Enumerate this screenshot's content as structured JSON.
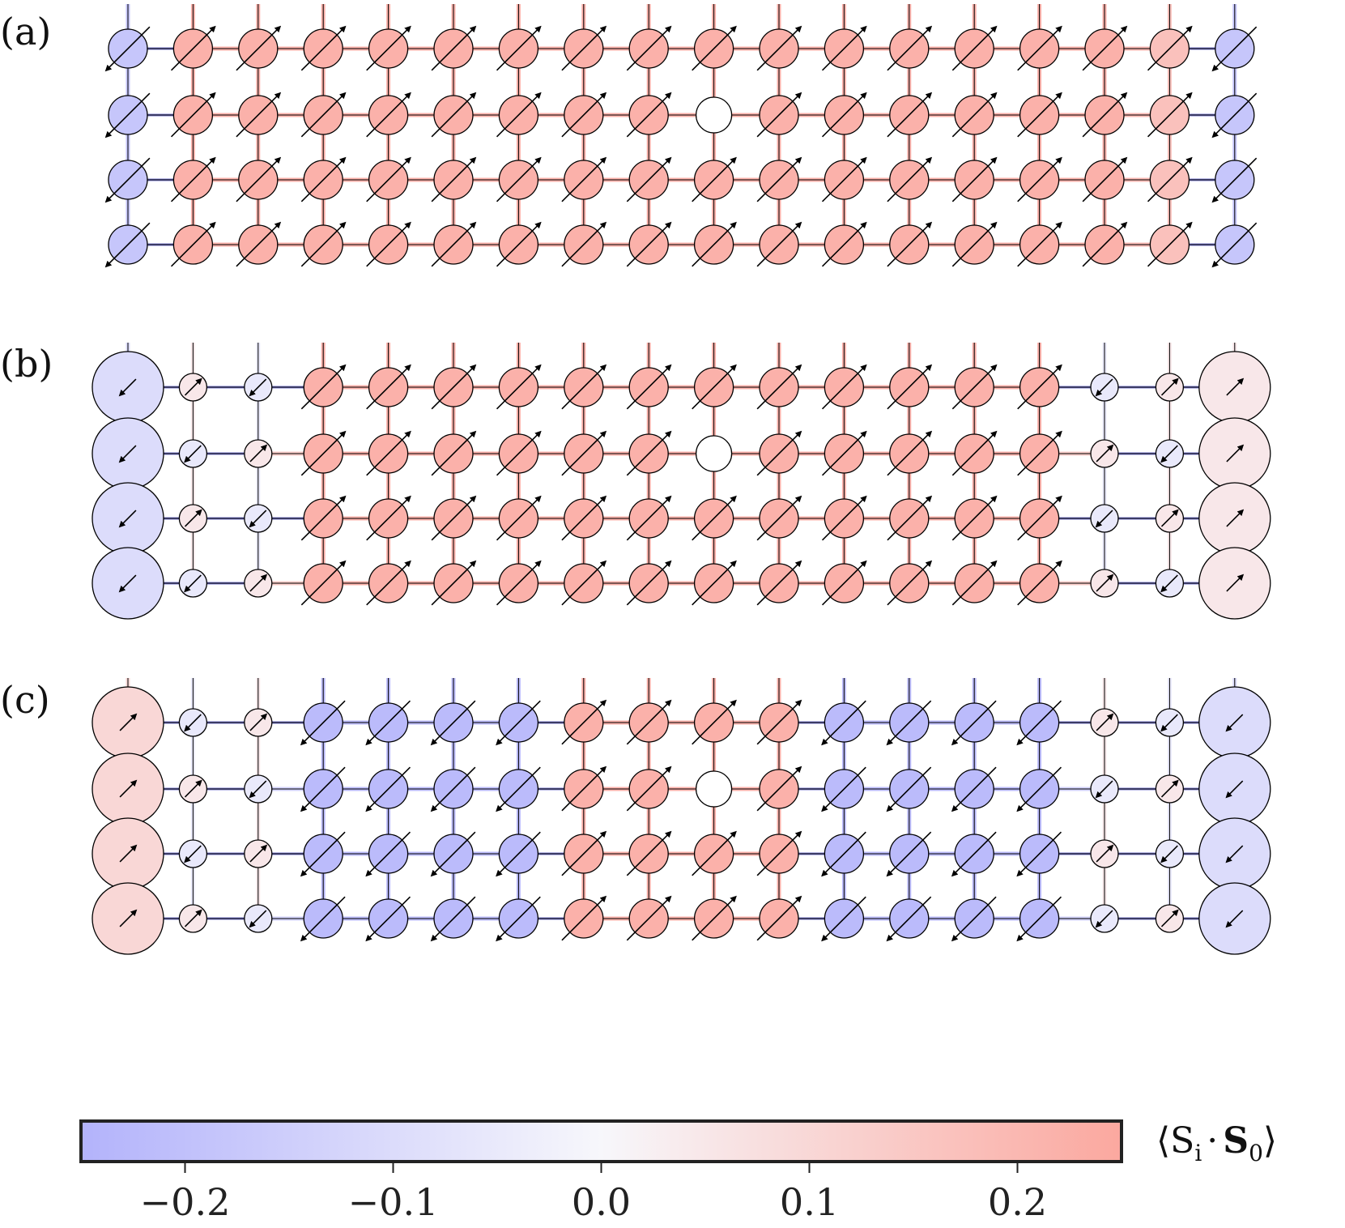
{
  "panels": [
    {
      "label": "(a)",
      "hole": {
        "row": 1,
        "col": 9
      }
    },
    {
      "label": "(b)",
      "hole": {
        "row": 1,
        "col": 9
      }
    },
    {
      "label": "(c)",
      "hole": {
        "row": 1,
        "col": 9
      }
    }
  ],
  "lattice": {
    "rows": 4,
    "columns": 18
  },
  "colorbar": {
    "title_main": "⟨S",
    "title_sub_i": "i",
    "title_dot": "·",
    "title_S0": "S",
    "title_sub_0": "0",
    "title_close": "⟩",
    "range": [
      -0.25,
      0.25
    ],
    "ticks": [
      -0.2,
      -0.1,
      0.0,
      0.1,
      0.2
    ],
    "tick_labels": [
      "−0.2",
      "−0.1",
      "0.0",
      "0.1",
      "0.2"
    ],
    "color_min": "#b3b3fb",
    "color_mid": "#f7f7fb",
    "color_max": "#fba89f"
  },
  "chart_data": {
    "type": "heatmap",
    "description_values": "spin correlation <Si.S0> per lattice site, rows x columns",
    "panel_a": {
      "columns_value": [
        -0.18,
        0.22,
        0.22,
        0.22,
        0.22,
        0.22,
        0.22,
        0.22,
        0.22,
        0.22,
        0.22,
        0.22,
        0.22,
        0.22,
        0.22,
        0.22,
        0.17,
        -0.18
      ],
      "radius_scale": "small"
    },
    "panel_b": {
      "columns_value": [
        -0.1,
        0.05,
        -0.05,
        0.22,
        0.22,
        0.22,
        0.22,
        0.22,
        0.22,
        0.22,
        0.22,
        0.22,
        0.22,
        0.22,
        0.22,
        -0.05,
        0.05,
        0.05
      ],
      "alternate_small_columns": [
        1,
        2,
        15,
        16
      ]
    },
    "panel_c": {
      "columns_value": [
        0.1,
        -0.05,
        0.05,
        -0.22,
        -0.22,
        -0.22,
        -0.22,
        0.22,
        0.22,
        0.22,
        0.22,
        -0.22,
        -0.22,
        -0.22,
        -0.22,
        0.05,
        -0.05,
        -0.1
      ],
      "alternate_small_columns": [
        1,
        2,
        15,
        16
      ]
    }
  }
}
